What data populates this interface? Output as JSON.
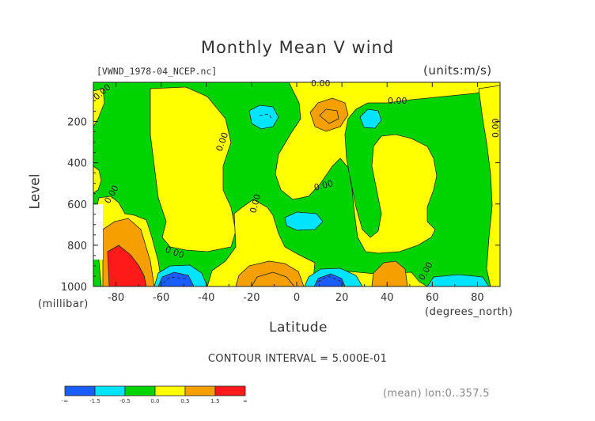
{
  "chart_data": {
    "type": "heatmap",
    "title": "Monthly Mean V wind",
    "file_label": "[VWND_1978-04_NCEP.nc]",
    "units_label": "(units:m/s)",
    "xlabel": "Latitude",
    "x_units": "(degrees_north)",
    "ylabel": "Level",
    "y_units": "(millibar)",
    "x_ticks": [
      "-80",
      "-60",
      "-40",
      "-20",
      "0",
      "20",
      "40",
      "60",
      "80"
    ],
    "x_tick_values": [
      -80,
      -60,
      -40,
      -20,
      0,
      20,
      40,
      60,
      80
    ],
    "y_ticks": [
      "200",
      "400",
      "600",
      "800",
      "1000"
    ],
    "y_tick_values": [
      200,
      400,
      600,
      800,
      1000
    ],
    "xlim": [
      -90,
      90
    ],
    "ylim": [
      1000,
      10
    ],
    "contour_interval_text": "CONTOUR INTERVAL = 5.000E-01",
    "mean_info": "(mean) lon:0..357.5",
    "contour_labels": [
      "0.00",
      "0.00",
      "0.00",
      "0.00",
      "0.00",
      "0.00",
      "0.00",
      "0.00",
      "0.00",
      "0.00"
    ],
    "colorbar": {
      "colors": [
        "#1a5cff",
        "#00e5ff",
        "#00d400",
        "#ffff00",
        "#f5a000",
        "#ff1a1a"
      ],
      "labels": [
        "-∞",
        "-1.5",
        "-0.5",
        "0.0",
        "0.5",
        "1.5",
        "∞"
      ]
    },
    "color_legend": {
      "strong_negative": "#1a5cff",
      "negative": "#00e5ff",
      "near_zero_negative": "#00d400",
      "near_zero_positive": "#ffff00",
      "positive": "#f5a000",
      "strong_positive": "#ff1a1a"
    }
  }
}
